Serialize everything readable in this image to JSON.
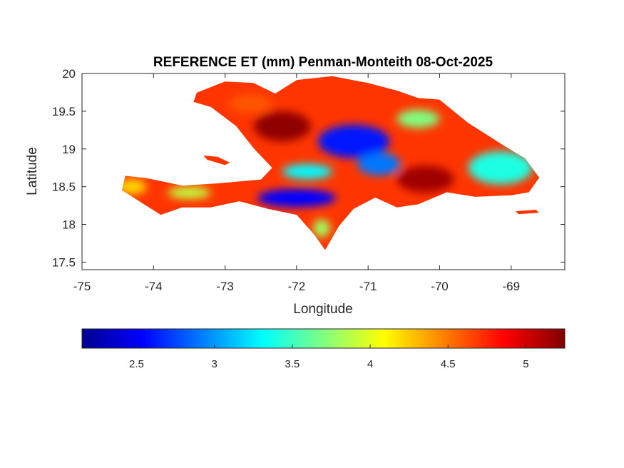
{
  "chart_data": {
    "type": "heatmap",
    "title": "REFERENCE ET (mm) Penman-Monteith 08-Oct-2025",
    "xlabel": "Longitude",
    "ylabel": "Latitude",
    "xlim": [
      -75,
      -68.25
    ],
    "ylim": [
      17.4,
      20
    ],
    "x_ticks": [
      "-75",
      "-74",
      "-73",
      "-72",
      "-71",
      "-70",
      "-69"
    ],
    "x_tick_values": [
      -75,
      -74,
      -73,
      -72,
      -71,
      -70,
      -69
    ],
    "y_ticks": [
      "20",
      "19.5",
      "19",
      "18.5",
      "18",
      "17.5"
    ],
    "y_tick_values": [
      20,
      19.5,
      19,
      18.5,
      18,
      17.5
    ],
    "colormap": "jet",
    "colorbar": {
      "location": "bottom",
      "range": [
        2.15,
        5.25
      ],
      "ticks": [
        "2.5",
        "3",
        "3.5",
        "4",
        "4.5",
        "5"
      ],
      "tick_values": [
        2.5,
        3,
        3.5,
        4,
        4.5,
        5
      ]
    },
    "regions": [
      {
        "name": "hispaniola-main",
        "outline": [
          [
            -73.0,
            19.9
          ],
          [
            -72.6,
            19.88
          ],
          [
            -72.3,
            19.74
          ],
          [
            -72.0,
            19.92
          ],
          [
            -71.5,
            19.97
          ],
          [
            -71.0,
            19.88
          ],
          [
            -70.6,
            19.78
          ],
          [
            -70.3,
            19.68
          ],
          [
            -70.0,
            19.66
          ],
          [
            -69.6,
            19.35
          ],
          [
            -69.1,
            19.05
          ],
          [
            -68.8,
            18.88
          ],
          [
            -68.6,
            18.62
          ],
          [
            -68.75,
            18.42
          ],
          [
            -69.0,
            18.38
          ],
          [
            -69.5,
            18.36
          ],
          [
            -69.9,
            18.42
          ],
          [
            -70.3,
            18.26
          ],
          [
            -70.6,
            18.22
          ],
          [
            -70.9,
            18.35
          ],
          [
            -71.2,
            18.2
          ],
          [
            -71.4,
            17.98
          ],
          [
            -71.6,
            17.65
          ],
          [
            -71.75,
            17.85
          ],
          [
            -72.0,
            18.12
          ],
          [
            -72.4,
            18.2
          ],
          [
            -72.8,
            18.3
          ],
          [
            -73.2,
            18.22
          ],
          [
            -73.6,
            18.22
          ],
          [
            -73.9,
            18.12
          ],
          [
            -74.2,
            18.3
          ],
          [
            -74.45,
            18.45
          ],
          [
            -74.4,
            18.65
          ],
          [
            -74.1,
            18.62
          ],
          [
            -73.6,
            18.52
          ],
          [
            -73.1,
            18.55
          ],
          [
            -72.5,
            18.6
          ],
          [
            -72.35,
            18.75
          ],
          [
            -72.6,
            19.0
          ],
          [
            -72.85,
            19.3
          ],
          [
            -73.2,
            19.55
          ],
          [
            -73.45,
            19.62
          ],
          [
            -73.4,
            19.75
          ]
        ]
      },
      {
        "name": "ile-de-la-gonave",
        "outline": [
          [
            -73.32,
            18.92
          ],
          [
            -73.1,
            18.9
          ],
          [
            -72.92,
            18.82
          ],
          [
            -73.0,
            18.78
          ],
          [
            -73.25,
            18.85
          ]
        ]
      },
      {
        "name": "ile-de-la-tortue",
        "outline": [
          [
            -72.95,
            20.05
          ],
          [
            -72.6,
            20.05
          ],
          [
            -72.62,
            20.0
          ],
          [
            -72.9,
            20.0
          ]
        ]
      },
      {
        "name": "isla-saona",
        "outline": [
          [
            -68.95,
            18.18
          ],
          [
            -68.65,
            18.2
          ],
          [
            -68.6,
            18.15
          ],
          [
            -68.9,
            18.13
          ]
        ]
      }
    ],
    "value_zones": [
      {
        "lon": -71.2,
        "lat": 19.1,
        "rx": 0.5,
        "ry": 0.22,
        "value": 2.6
      },
      {
        "lon": -70.85,
        "lat": 18.8,
        "rx": 0.3,
        "ry": 0.15,
        "value": 2.9
      },
      {
        "lon": -71.85,
        "lat": 18.7,
        "rx": 0.35,
        "ry": 0.1,
        "value": 3.3
      },
      {
        "lon": -72.0,
        "lat": 18.35,
        "rx": 0.55,
        "ry": 0.12,
        "value": 2.55
      },
      {
        "lon": -69.15,
        "lat": 18.75,
        "rx": 0.45,
        "ry": 0.22,
        "value": 3.4
      },
      {
        "lon": -74.3,
        "lat": 18.5,
        "rx": 0.2,
        "ry": 0.1,
        "value": 4.2
      },
      {
        "lon": -72.65,
        "lat": 19.6,
        "rx": 0.3,
        "ry": 0.12,
        "value": 4.6
      },
      {
        "lon": -70.3,
        "lat": 19.4,
        "rx": 0.3,
        "ry": 0.12,
        "value": 3.7
      },
      {
        "lon": -72.2,
        "lat": 19.3,
        "rx": 0.4,
        "ry": 0.2,
        "value": 5.2
      },
      {
        "lon": -70.2,
        "lat": 18.6,
        "rx": 0.4,
        "ry": 0.18,
        "value": 5.15
      },
      {
        "lon": -73.5,
        "lat": 18.42,
        "rx": 0.3,
        "ry": 0.08,
        "value": 3.9
      },
      {
        "lon": -71.65,
        "lat": 17.95,
        "rx": 0.12,
        "ry": 0.12,
        "value": 3.8
      }
    ],
    "background_value": 4.7
  }
}
